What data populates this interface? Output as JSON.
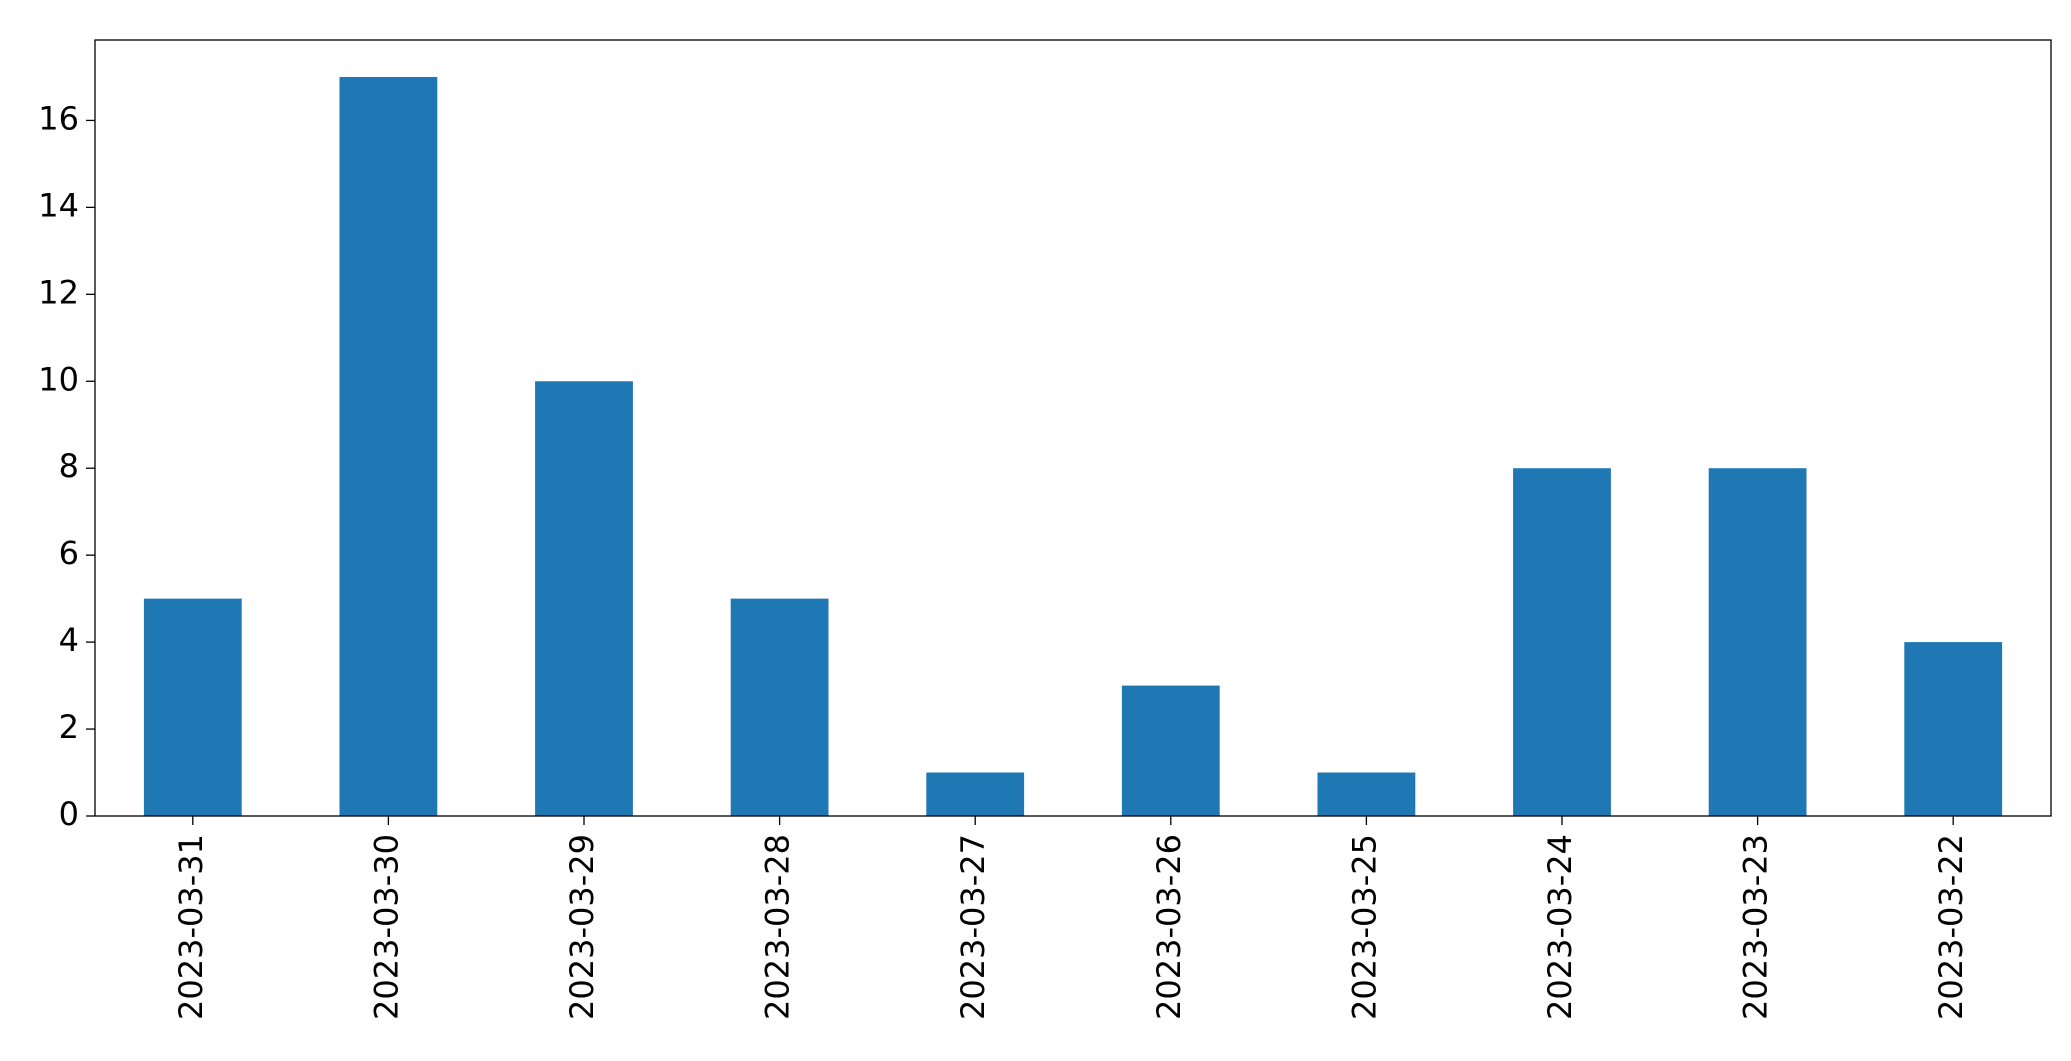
{
  "chart_data": {
    "type": "bar",
    "categories": [
      "2023-03-31",
      "2023-03-30",
      "2023-03-29",
      "2023-03-28",
      "2023-03-27",
      "2023-03-26",
      "2023-03-25",
      "2023-03-24",
      "2023-03-23",
      "2023-03-22"
    ],
    "values": [
      5,
      17,
      10,
      5,
      1,
      3,
      1,
      8,
      8,
      4
    ],
    "color": "#1f77b4",
    "ylim": [
      0,
      17.85
    ],
    "yticks": [
      0,
      2,
      4,
      6,
      8,
      10,
      12,
      14,
      16
    ],
    "grid": false
  }
}
